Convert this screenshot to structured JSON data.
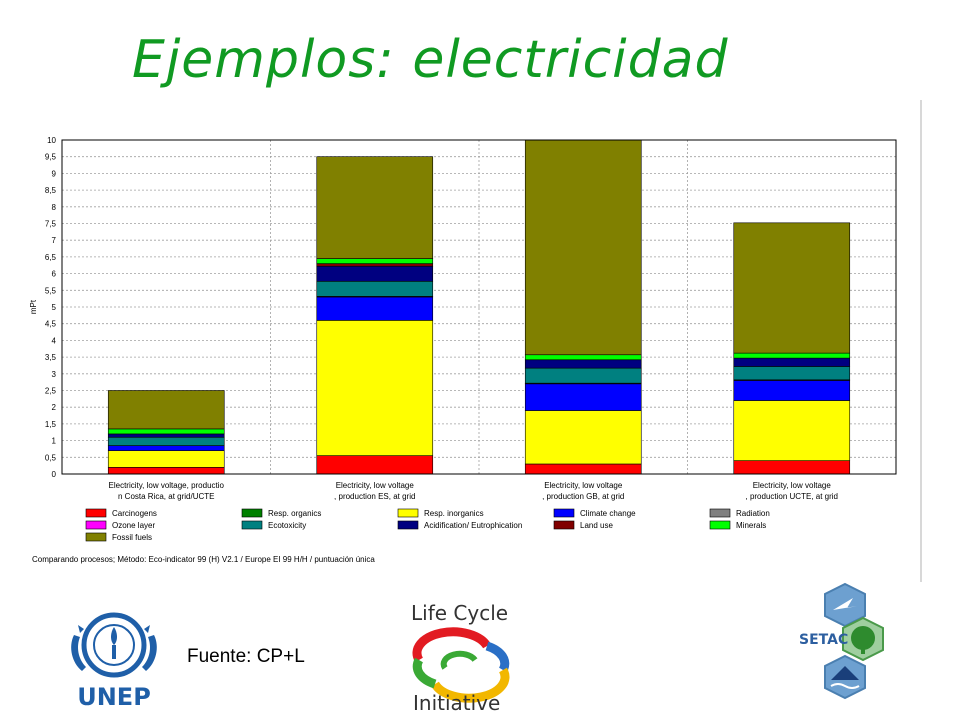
{
  "slide": {
    "title": "Ejemplos: electricidad",
    "source": "Fuente: CP+L"
  },
  "logos": {
    "unep": "UNEP",
    "lci_line1": "Life Cycle",
    "lci_line2": "Initiative",
    "setac": "SETAC"
  },
  "chart_data": {
    "type": "bar",
    "stacked": true,
    "ylabel": "mPt",
    "ylim": [
      0,
      10
    ],
    "yticks": [
      "0",
      "0,5",
      "1",
      "1,5",
      "2",
      "2,5",
      "3",
      "3,5",
      "4",
      "4,5",
      "5",
      "5,5",
      "6",
      "6,5",
      "7",
      "7,5",
      "8",
      "8,5",
      "9",
      "9,5",
      "10"
    ],
    "grid": true,
    "categories": [
      [
        "Electricity, low voltage, productio",
        "n Costa Rica, at grid/UCTE"
      ],
      [
        "Electricity, low voltage",
        ", production ES, at grid"
      ],
      [
        "Electricity, low voltage",
        ", production GB, at grid"
      ],
      [
        "Electricity, low voltage",
        ", production UCTE, at grid"
      ]
    ],
    "series": [
      {
        "name": "Carcinogens",
        "color": "#ff0000",
        "values": [
          0.2,
          0.55,
          0.3,
          0.4
        ]
      },
      {
        "name": "Resp. organics",
        "color": "#008000",
        "values": [
          0.0,
          0.0,
          0.0,
          0.0
        ]
      },
      {
        "name": "Resp. inorganics",
        "color": "#ffff00",
        "values": [
          0.5,
          4.05,
          1.6,
          1.8
        ]
      },
      {
        "name": "Climate change",
        "color": "#0000ff",
        "values": [
          0.15,
          0.7,
          0.8,
          0.6
        ]
      },
      {
        "name": "Radiation",
        "color": "#808080",
        "values": [
          0.0,
          0.02,
          0.02,
          0.02
        ]
      },
      {
        "name": "Ozone layer",
        "color": "#ff00ff",
        "values": [
          0.0,
          0.0,
          0.0,
          0.0
        ]
      },
      {
        "name": "Ecotoxicity",
        "color": "#008080",
        "values": [
          0.25,
          0.45,
          0.45,
          0.4
        ]
      },
      {
        "name": "Acidification/ Eutrophication",
        "color": "#000080",
        "values": [
          0.1,
          0.45,
          0.25,
          0.25
        ]
      },
      {
        "name": "Land use",
        "color": "#800000",
        "values": [
          0.0,
          0.08,
          0.0,
          0.0
        ]
      },
      {
        "name": "Minerals",
        "color": "#00ff00",
        "values": [
          0.15,
          0.15,
          0.15,
          0.15
        ]
      },
      {
        "name": "Fossil fuels",
        "color": "#808000",
        "values": [
          1.15,
          3.05,
          6.68,
          3.9
        ]
      }
    ],
    "legend_position": "bottom",
    "caption": "Comparando procesos;  Método: Eco-indicator 99 (H) V2.1 / Europe EI 99 H/H / puntuación única"
  }
}
